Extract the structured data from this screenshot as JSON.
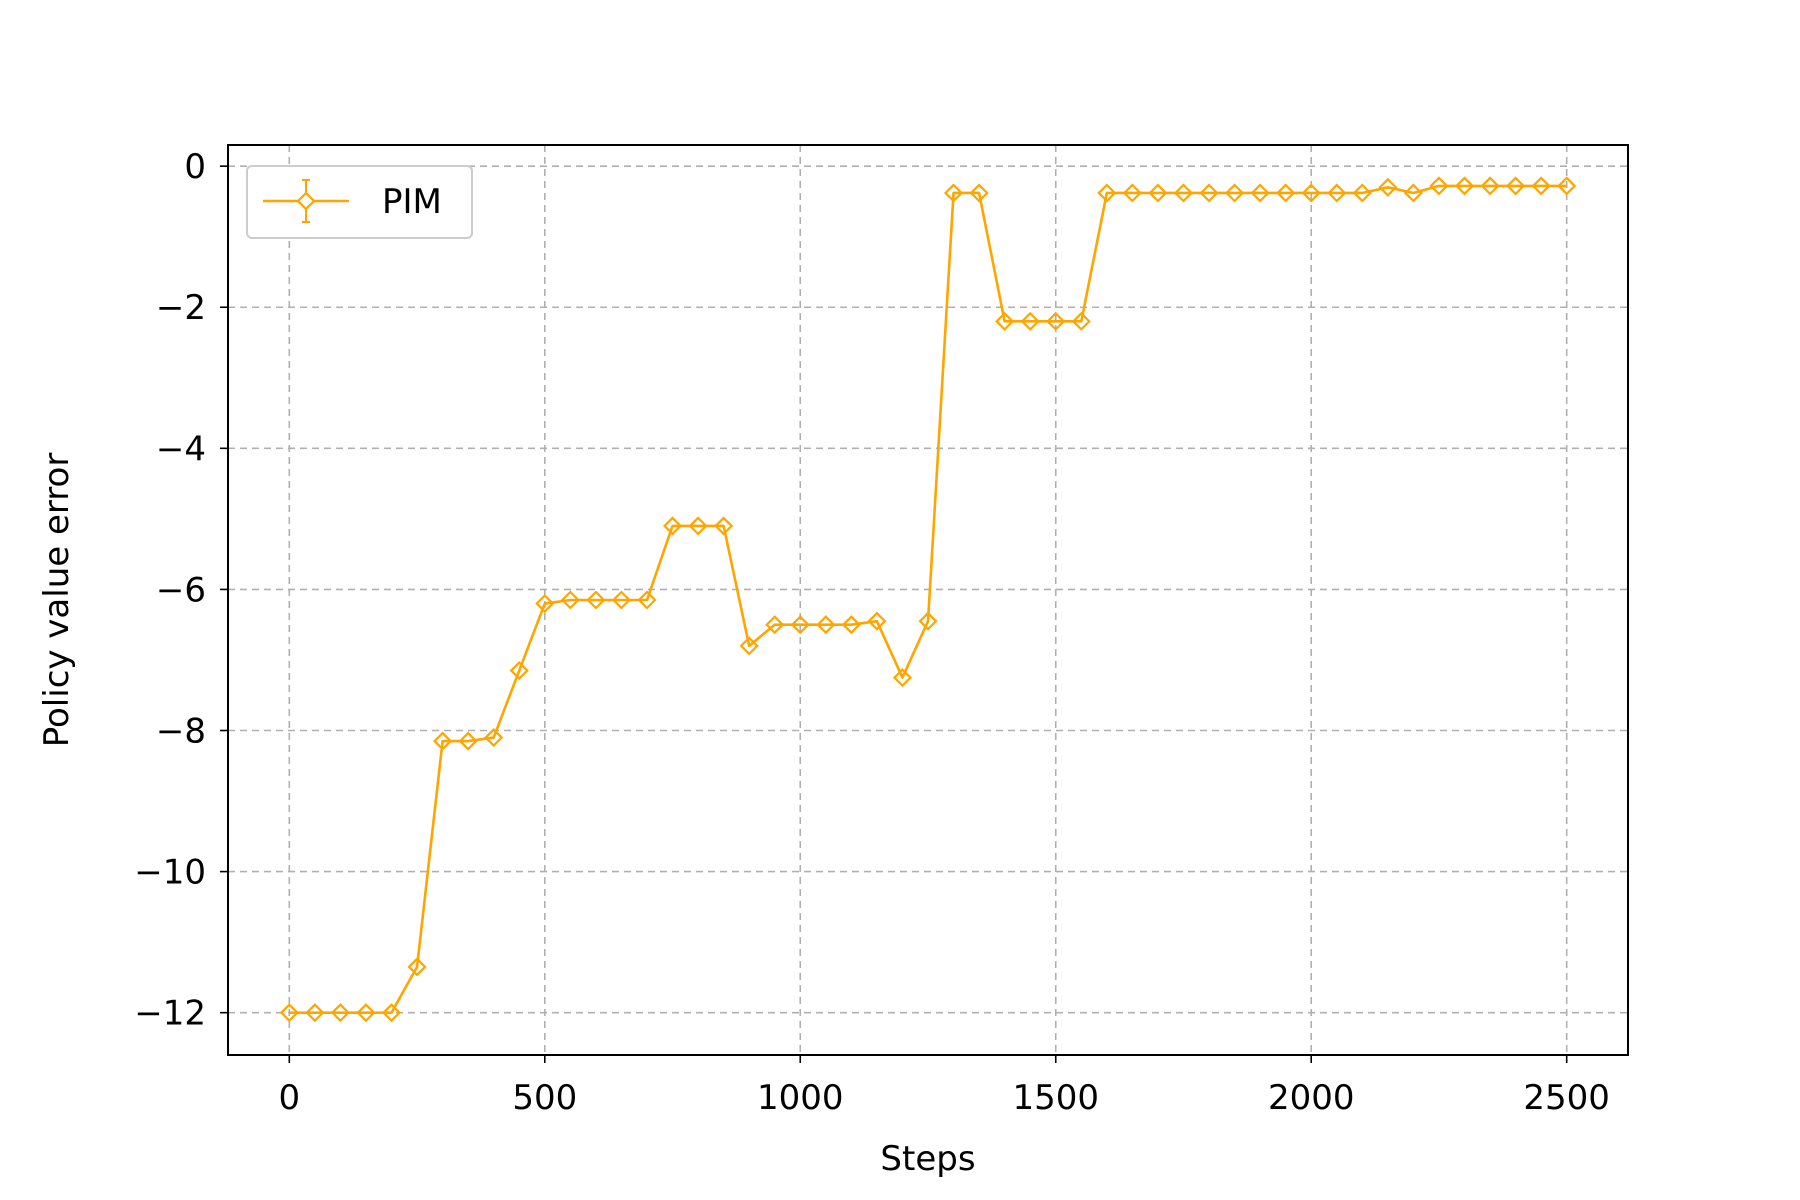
{
  "chart_data": {
    "type": "line",
    "xlabel": "Steps",
    "ylabel": "Policy value error",
    "xlim": [
      -120,
      2620
    ],
    "ylim": [
      -12.6,
      0.3
    ],
    "xticks": [
      0,
      500,
      1000,
      1500,
      2000,
      2500
    ],
    "xtick_labels": [
      "0",
      "500",
      "1000",
      "1500",
      "2000",
      "2500"
    ],
    "yticks": [
      0,
      -2,
      -4,
      -6,
      -8,
      -10,
      -12
    ],
    "ytick_labels": [
      "0",
      "−2",
      "−4",
      "−6",
      "−8",
      "−10",
      "−12"
    ],
    "grid": true,
    "legend_position": "top-left",
    "series": [
      {
        "name": "PIM",
        "color": "#FFA500",
        "marker": "diamond-open",
        "x": [
          0,
          50,
          100,
          150,
          200,
          250,
          300,
          350,
          400,
          450,
          500,
          550,
          600,
          650,
          700,
          750,
          800,
          850,
          900,
          950,
          1000,
          1050,
          1100,
          1150,
          1200,
          1250,
          1300,
          1350,
          1400,
          1450,
          1500,
          1550,
          1600,
          1650,
          1700,
          1750,
          1800,
          1850,
          1900,
          1950,
          2000,
          2050,
          2100,
          2150,
          2200,
          2250,
          2300,
          2350,
          2400,
          2450,
          2500
        ],
        "y": [
          -12.0,
          -12.0,
          -12.0,
          -12.0,
          -12.0,
          -11.35,
          -8.15,
          -8.15,
          -8.1,
          -7.15,
          -6.2,
          -6.15,
          -6.15,
          -6.15,
          -6.15,
          -5.1,
          -5.1,
          -5.1,
          -6.8,
          -6.5,
          -6.5,
          -6.5,
          -6.5,
          -6.45,
          -7.25,
          -6.45,
          -0.38,
          -0.38,
          -2.2,
          -2.2,
          -2.2,
          -2.2,
          -0.38,
          -0.38,
          -0.38,
          -0.38,
          -0.38,
          -0.38,
          -0.38,
          -0.38,
          -0.38,
          -0.38,
          -0.38,
          -0.3,
          -0.38,
          -0.28,
          -0.28,
          -0.28,
          -0.28,
          -0.28,
          -0.28
        ]
      }
    ]
  }
}
